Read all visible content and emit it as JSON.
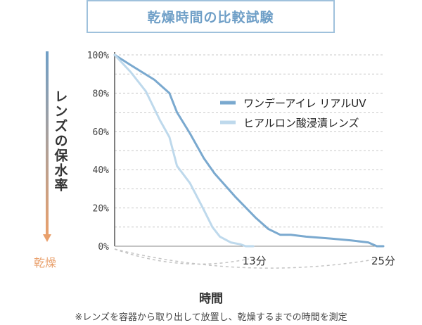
{
  "chart_data": {
    "type": "line",
    "title": "乾燥時間の比較試験",
    "ylabel": "レンズの保水率",
    "ylabel_arrow_end": "乾燥",
    "xlabel": "時間",
    "footnote": "※レンズを容器から取り出して放置し、乾燥するまでの時間を測定",
    "yticks": [
      "0%",
      "20%",
      "40%",
      "60%",
      "80%",
      "100%"
    ],
    "ylim": [
      0,
      100
    ],
    "xlim": [
      0,
      25
    ],
    "xtick_labels": [
      {
        "x": 13,
        "label": "13分"
      },
      {
        "x": 25,
        "label": "25分"
      }
    ],
    "legend_position": "right",
    "series": [
      {
        "name": "ワンデーアイレ リアルUV",
        "color": "#7aa9cf",
        "x": [
          0,
          1.4,
          3.7,
          5.1,
          5.8,
          7.0,
          8.3,
          9.3,
          11.2,
          13.1,
          14.3,
          15.4,
          16.4,
          17.8,
          20.1,
          22.0,
          23.6,
          24.4,
          25.0
        ],
        "y": [
          100,
          95,
          87,
          80,
          70,
          59,
          46,
          38,
          26,
          15,
          9,
          6,
          6,
          5,
          4,
          3,
          2,
          0,
          0
        ]
      },
      {
        "name": "ヒアルロン酸浸漬レンズ",
        "color": "#bed9ec",
        "x": [
          0,
          1.5,
          2.9,
          4.2,
          5.1,
          5.8,
          7.0,
          8.3,
          9.1,
          9.8,
          10.8,
          11.7,
          12.2,
          12.9
        ],
        "y": [
          100,
          91,
          81,
          66,
          57,
          42,
          33,
          19,
          10,
          5,
          2,
          1,
          0,
          0
        ]
      }
    ]
  }
}
